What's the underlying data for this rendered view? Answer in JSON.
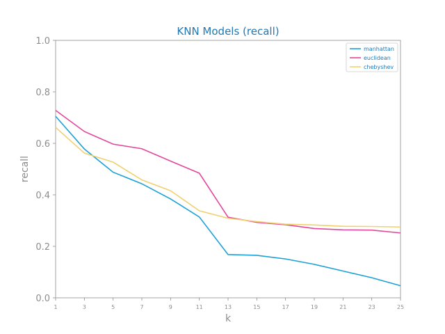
{
  "chart_data": {
    "type": "line",
    "title": "KNN Models (recall)",
    "xlabel": "k",
    "ylabel": "recall",
    "x": [
      1,
      3,
      5,
      7,
      9,
      11,
      13,
      15,
      17,
      19,
      21,
      23,
      25
    ],
    "xlim": [
      1,
      25
    ],
    "ylim": [
      0.0,
      1.0
    ],
    "yticks": [
      0.0,
      0.2,
      0.4,
      0.6,
      0.8,
      1.0
    ],
    "ytick_labels": [
      "0.0",
      "0.2",
      "0.4",
      "0.6",
      "0.8",
      "1.0"
    ],
    "xtick_labels": [
      "1",
      "3",
      "5",
      "7",
      "9",
      "11",
      "13",
      "15",
      "17",
      "19",
      "21",
      "23",
      "25"
    ],
    "grid": false,
    "legend_position": "top-right",
    "series": [
      {
        "name": "manhattan",
        "color": "#1a9fd6",
        "values": [
          0.705,
          0.578,
          0.488,
          0.443,
          0.384,
          0.314,
          0.168,
          0.165,
          0.151,
          0.13,
          0.104,
          0.078,
          0.047
        ]
      },
      {
        "name": "euclidean",
        "color": "#e2469a",
        "values": [
          0.728,
          0.646,
          0.597,
          0.579,
          0.531,
          0.484,
          0.313,
          0.293,
          0.284,
          0.269,
          0.264,
          0.263,
          0.252
        ]
      },
      {
        "name": "chebyshev",
        "color": "#f0d070",
        "values": [
          0.662,
          0.562,
          0.527,
          0.458,
          0.416,
          0.338,
          0.309,
          0.296,
          0.286,
          0.283,
          0.278,
          0.277,
          0.275
        ]
      }
    ],
    "title_color": "#1f77b4",
    "axis_color": "#8c8c8c"
  }
}
